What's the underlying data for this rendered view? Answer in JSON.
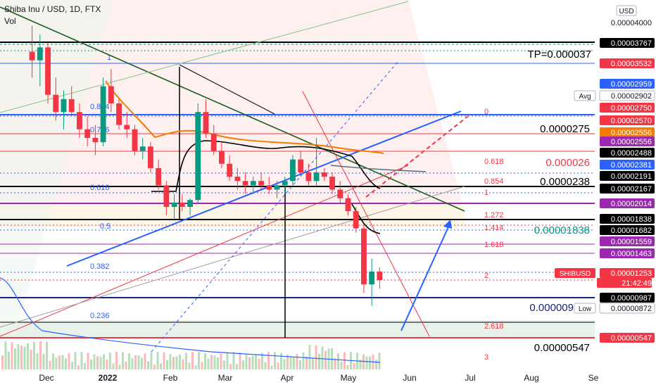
{
  "header": {
    "title": "Shiba Inu / USD, 1D, FTX",
    "sub": "Vol"
  },
  "axis": {
    "currency": "USD",
    "top_price": "0.00004000",
    "x_labels": [
      "Dec",
      "2022",
      "Feb",
      "Mar",
      "Apr",
      "May",
      "Jun",
      "Jul",
      "Aug",
      "Se"
    ]
  },
  "price_tags": [
    {
      "text": "0.00003767",
      "bg": "#000000",
      "fg": "#ffffff"
    },
    {
      "text": "0.00003532",
      "bg": "#f23645",
      "fg": "#ffffff"
    },
    {
      "text": "0.00002959",
      "bg": "#2962ff",
      "fg": "#ffffff"
    },
    {
      "text": "0.00002902",
      "bg": "#ffffff",
      "fg": "#131722"
    },
    {
      "text": "0.00002750",
      "bg": "#f23645",
      "fg": "#ffffff"
    },
    {
      "text": "0.00002570",
      "bg": "#f23645",
      "fg": "#ffffff"
    },
    {
      "text": "0.00002556",
      "bg": "#f57c00",
      "fg": "#ffffff"
    },
    {
      "text": "0.00002556",
      "bg": "#9c27b0",
      "fg": "#ffffff"
    },
    {
      "text": "0.00002488",
      "bg": "#000000",
      "fg": "#ffffff"
    },
    {
      "text": "0.00002381",
      "bg": "#2962ff",
      "fg": "#ffffff"
    },
    {
      "text": "0.00002191",
      "bg": "#000000",
      "fg": "#ffffff"
    },
    {
      "text": "0.00002167",
      "bg": "#000000",
      "fg": "#ffffff"
    },
    {
      "text": "0.00002014",
      "bg": "#9c27b0",
      "fg": "#ffffff"
    },
    {
      "text": "0.00001838",
      "bg": "#000000",
      "fg": "#ffffff"
    },
    {
      "text": "0.00001682",
      "bg": "#000000",
      "fg": "#ffffff"
    },
    {
      "text": "0.00001559",
      "bg": "#9c27b0",
      "fg": "#ffffff"
    },
    {
      "text": "0.00001463",
      "bg": "#9c27b0",
      "fg": "#ffffff"
    },
    {
      "text": "0.00001253",
      "bg": "#f23645",
      "fg": "#ffffff"
    },
    {
      "text": "21:42:49",
      "bg": "#f23645",
      "fg": "#ffffff"
    },
    {
      "text": "0.00000987",
      "bg": "#000000",
      "fg": "#ffffff"
    },
    {
      "text": "0.00000872",
      "bg": "#ffffff",
      "fg": "#131722"
    },
    {
      "text": "0.00000547",
      "bg": "#f23645",
      "fg": "#ffffff"
    }
  ],
  "side_labels": {
    "avg": "Avg",
    "low": "Low",
    "symbol": "SHIBUSD"
  },
  "annotations": {
    "tp": "TP=0.000037",
    "a0000275": "0.0000275",
    "a000026": "0.000026",
    "a0000238": "0.0000238",
    "a00001838": "0.00001838",
    "a000009": "0.000009",
    "a00000547": "0.00000547"
  },
  "fib_left": [
    "1",
    "0.854",
    "0.786",
    "0.618",
    "0.5",
    "0.382",
    "0.236"
  ],
  "fib_right": [
    "0",
    "0.618",
    "0.854",
    "1",
    "1.272",
    "1.414",
    "1.618",
    "2",
    "2.618",
    "3"
  ],
  "chart_data": {
    "type": "candlestick",
    "title": "Shiba Inu / USD, 1D, FTX",
    "x_ticks": [
      "Dec",
      "2022",
      "Feb",
      "Mar",
      "Apr",
      "May",
      "Jun",
      "Jul",
      "Aug",
      "Se"
    ],
    "series": [
      {
        "name": "SHIBUSD",
        "last": 1.253e-05
      },
      {
        "name": "Vol"
      }
    ],
    "price_levels": [
      3.767e-05,
      3.532e-05,
      2.959e-05,
      2.902e-05,
      2.75e-05,
      2.57e-05,
      2.556e-05,
      2.488e-05,
      2.381e-05,
      2.191e-05,
      2.167e-05,
      2.014e-05,
      1.838e-05,
      1.682e-05,
      1.559e-05,
      1.463e-05,
      1.253e-05,
      9.87e-06,
      8.72e-06,
      5.47e-06
    ],
    "ohlc_approx": [
      [
        3.9e-05,
        4.2e-05,
        3.6e-05,
        3.8e-05
      ],
      [
        3.8e-05,
        4.1e-05,
        3.5e-05,
        3.95e-05
      ],
      [
        3.95e-05,
        4e-05,
        3.3e-05,
        3.4e-05
      ],
      [
        3.4e-05,
        3.6e-05,
        3.1e-05,
        3.2e-05
      ],
      [
        3.2e-05,
        3.45e-05,
        3e-05,
        3.35e-05
      ],
      [
        3.35e-05,
        3.5e-05,
        3.15e-05,
        3.2e-05
      ],
      [
        3.2e-05,
        3.3e-05,
        2.9e-05,
        3e-05
      ],
      [
        3e-05,
        3.15e-05,
        2.8e-05,
        2.9e-05
      ],
      [
        2.9e-05,
        3.05e-05,
        2.7e-05,
        2.85e-05
      ],
      [
        2.85e-05,
        3.6e-05,
        2.8e-05,
        3.5e-05
      ],
      [
        3.5e-05,
        3.7e-05,
        3.2e-05,
        3.3e-05
      ],
      [
        3.3e-05,
        3.35e-05,
        3e-05,
        3.05e-05
      ],
      [
        3.05e-05,
        3.2e-05,
        2.9e-05,
        3e-05
      ],
      [
        3e-05,
        3.05e-05,
        2.7e-05,
        2.75e-05
      ],
      [
        2.75e-05,
        2.9e-05,
        2.65e-05,
        2.8e-05
      ],
      [
        2.8e-05,
        2.85e-05,
        2.5e-05,
        2.55e-05
      ],
      [
        2.55e-05,
        2.65e-05,
        2.3e-05,
        2.35e-05
      ],
      [
        2.35e-05,
        2.4e-05,
        2e-05,
        2.1e-05
      ],
      [
        2.1e-05,
        2.25e-05,
        1.95e-05,
        2.15e-05
      ],
      [
        2.15e-05,
        2.25e-05,
        2.05e-05,
        2.1e-05
      ],
      [
        2.1e-05,
        2.2e-05,
        2e-05,
        2.18e-05
      ],
      [
        2.18e-05,
        3.3e-05,
        2.15e-05,
        3.2e-05
      ],
      [
        3.2e-05,
        3.35e-05,
        2.9e-05,
        2.95e-05
      ],
      [
        2.95e-05,
        3.05e-05,
        2.7e-05,
        2.75e-05
      ],
      [
        2.75e-05,
        2.85e-05,
        2.55e-05,
        2.6e-05
      ],
      [
        2.6e-05,
        2.7e-05,
        2.4e-05,
        2.45e-05
      ],
      [
        2.45e-05,
        2.55e-05,
        2.3e-05,
        2.4e-05
      ],
      [
        2.4e-05,
        2.5e-05,
        2.25e-05,
        2.35e-05
      ],
      [
        2.35e-05,
        2.45e-05,
        2.25e-05,
        2.4e-05
      ],
      [
        2.4e-05,
        2.5e-05,
        2.3e-05,
        2.35e-05
      ],
      [
        2.35e-05,
        2.45e-05,
        2.25e-05,
        2.3e-05
      ],
      [
        2.3e-05,
        2.4e-05,
        2.2e-05,
        2.35e-05
      ],
      [
        2.35e-05,
        2.45e-05,
        2.25e-05,
        2.4e-05
      ],
      [
        2.4e-05,
        2.7e-05,
        2.35e-05,
        2.65e-05
      ],
      [
        2.65e-05,
        2.75e-05,
        2.45e-05,
        2.5e-05
      ],
      [
        2.5e-05,
        2.6e-05,
        2.35e-05,
        2.4e-05
      ],
      [
        2.4e-05,
        2.9e-05,
        2.35e-05,
        2.5e-05
      ],
      [
        2.5e-05,
        2.55e-05,
        2.4e-05,
        2.45e-05
      ],
      [
        2.45e-05,
        2.5e-05,
        2.25e-05,
        2.3e-05
      ],
      [
        2.3e-05,
        2.4e-05,
        2.15e-05,
        2.2e-05
      ],
      [
        2.2e-05,
        2.25e-05,
        2e-05,
        2.05e-05
      ],
      [
        2.05e-05,
        2.1e-05,
        1.8e-05,
        1.85e-05
      ],
      [
        1.85e-05,
        1.9e-05,
        1.1e-05,
        1.2e-05
      ],
      [
        1.2e-05,
        1.5e-05,
        9.5e-06,
        1.35e-05
      ],
      [
        1.35e-05,
        1.4e-05,
        1.15e-05,
        1.25e-05
      ]
    ],
    "xlabel": "",
    "ylabel": ""
  }
}
